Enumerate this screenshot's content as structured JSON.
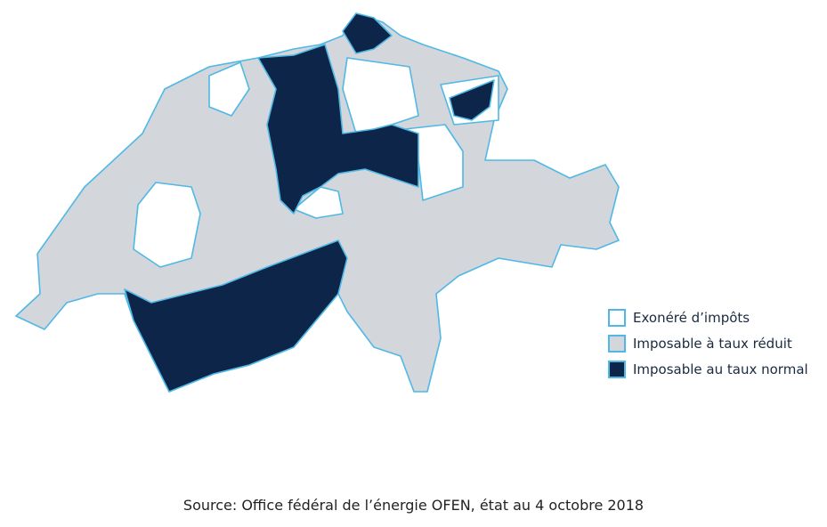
{
  "legend": {
    "items": [
      "Exonéré d’impôts",
      "Imposable à taux réduit",
      "Imposable au taux normal"
    ]
  },
  "source": "Source: Office fédéral de l’énergie OFEN, état au 4 octobre 2018"
}
